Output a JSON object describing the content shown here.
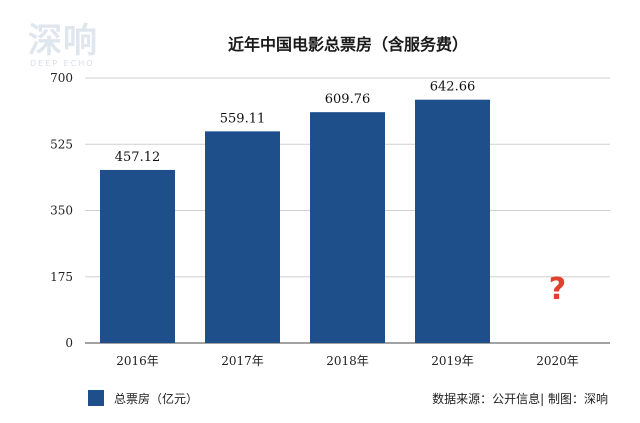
{
  "logo": {
    "main": "深响",
    "sub": "DEEP ECHO"
  },
  "chart_data": {
    "type": "bar",
    "title": "近年中国电影总票房（含服务费）",
    "categories": [
      "2016年",
      "2017年",
      "2018年",
      "2019年",
      "2020年"
    ],
    "series": [
      {
        "name": "总票房（亿元）",
        "values": [
          457.12,
          559.11,
          609.76,
          642.66,
          null
        ],
        "color": "#1f4f8b"
      }
    ],
    "data_labels": [
      "457.12",
      "559.11",
      "609.76",
      "642.66",
      "?"
    ],
    "ylim": [
      0,
      700
    ],
    "yticks": [
      0,
      175,
      350,
      525,
      700
    ],
    "grid": true,
    "legend_position": "bottom-left",
    "annotation_color": "#e0402e"
  },
  "source_note": "数据来源：公开信息| 制图：深响"
}
